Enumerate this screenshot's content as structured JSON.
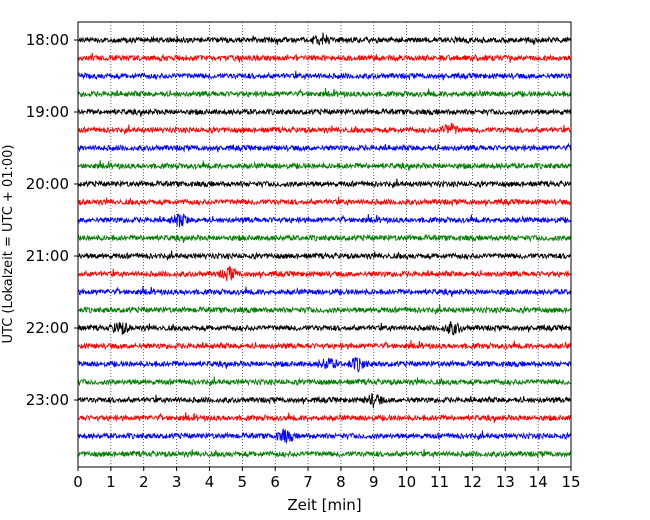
{
  "chart_data": {
    "type": "line",
    "title": "",
    "xlabel": "Zeit  [min]",
    "ylabel": "UTC (Lokalzeit = UTC + 01:00)",
    "xlim": [
      0,
      15
    ],
    "x_ticks": [
      0,
      1,
      2,
      3,
      4,
      5,
      6,
      7,
      8,
      9,
      10,
      11,
      12,
      13,
      14,
      15
    ],
    "y_ticks": [
      "18:00",
      "19:00",
      "20:00",
      "21:00",
      "22:00",
      "23:00"
    ],
    "grid": "vertical dotted lines at each minute",
    "legend": "none",
    "trace_colors": [
      "#000000",
      "#ff0000",
      "#0000ff",
      "#008000"
    ],
    "trace_starts": [
      "18:00",
      "18:15",
      "18:30",
      "18:45",
      "19:00",
      "19:15",
      "19:30",
      "19:45",
      "20:00",
      "20:15",
      "20:30",
      "20:45",
      "21:00",
      "21:15",
      "21:30",
      "21:45",
      "22:00",
      "22:15",
      "22:30",
      "22:45",
      "23:00",
      "23:15",
      "23:30",
      "23:45"
    ],
    "events": [
      {
        "trace": "18:00",
        "x_min": 7.4
      },
      {
        "trace": "19:15",
        "x_min": 11.3
      },
      {
        "trace": "20:30",
        "x_min": 3.1
      },
      {
        "trace": "21:15",
        "x_min": 4.6
      },
      {
        "trace": "22:00",
        "x_min": 1.3
      },
      {
        "trace": "22:00",
        "x_min": 11.4
      },
      {
        "trace": "22:30",
        "x_min": 7.6
      },
      {
        "trace": "22:30",
        "x_min": 8.5
      },
      {
        "trace": "23:00",
        "x_min": 9.0
      },
      {
        "trace": "23:30",
        "x_min": 6.3
      }
    ]
  }
}
